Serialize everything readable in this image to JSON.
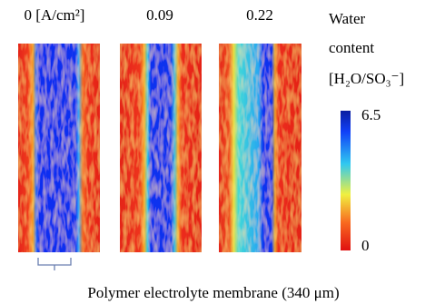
{
  "panels": [
    {
      "label": "0 [A/cm²]"
    },
    {
      "label": "0.09"
    },
    {
      "label": "0.22"
    }
  ],
  "colorbar": {
    "title_line1": "Water",
    "title_line2": "content",
    "title_line3": "[H₂O/SO₃⁻]",
    "max": 6.5,
    "min": 0
  },
  "caption": "Polymer electrolyte membrane (340 μm)"
}
